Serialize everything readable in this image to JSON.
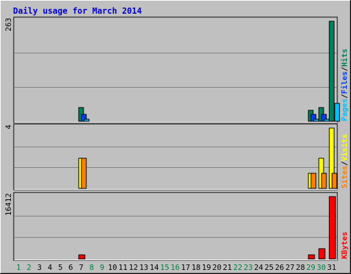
{
  "chart_data": {
    "type": "bar",
    "title": "Daily usage for March 2014",
    "colors": {
      "background": "#c0c0c0",
      "panel": "#c0c0c0",
      "title": "#0000cc",
      "hits": "#00805c",
      "files": "#0040ff",
      "pages": "#00c0ff",
      "visits": "#ffff00",
      "sites": "#ff8000",
      "kbytes": "#ff0000",
      "weekday": "#000000",
      "weekend": "#008040"
    },
    "x": [
      "1",
      "2",
      "3",
      "4",
      "5",
      "6",
      "7",
      "8",
      "9",
      "10",
      "11",
      "12",
      "13",
      "14",
      "15",
      "16",
      "17",
      "18",
      "19",
      "20",
      "21",
      "22",
      "23",
      "24",
      "25",
      "26",
      "27",
      "28",
      "29",
      "30",
      "31"
    ],
    "weekend_days": [
      "1",
      "2",
      "8",
      "9",
      "15",
      "16",
      "22",
      "23",
      "29",
      "30"
    ],
    "panels": [
      {
        "name": "hits-files-pages",
        "ymax_label": "263",
        "ymax": 263,
        "legend": [
          "Pages",
          "/",
          "Files",
          "/",
          "Hits"
        ],
        "legend_colors": [
          "pages",
          "black",
          "files",
          "black",
          "hits"
        ],
        "series": [
          {
            "name": "Hits",
            "values": [
              0,
              0,
              0,
              0,
              0,
              0,
              36,
              0,
              0,
              0,
              0,
              0,
              0,
              0,
              0,
              0,
              0,
              0,
              0,
              0,
              0,
              0,
              0,
              0,
              0,
              0,
              0,
              0,
              28,
              36,
              263
            ]
          },
          {
            "name": "Files",
            "values": [
              0,
              0,
              0,
              0,
              0,
              0,
              18,
              0,
              0,
              0,
              0,
              0,
              0,
              0,
              0,
              0,
              0,
              0,
              0,
              0,
              0,
              0,
              0,
              0,
              0,
              0,
              0,
              0,
              18,
              18,
              0
            ]
          },
          {
            "name": "Pages",
            "values": [
              0,
              0,
              0,
              0,
              0,
              0,
              5,
              0,
              0,
              0,
              0,
              0,
              0,
              0,
              0,
              0,
              0,
              0,
              0,
              0,
              0,
              0,
              0,
              0,
              0,
              0,
              0,
              0,
              5,
              5,
              47
            ]
          }
        ]
      },
      {
        "name": "sites-visits",
        "ymax_label": "4",
        "ymax": 4,
        "legend": [
          "Sites",
          "/",
          "Visits"
        ],
        "legend_colors": [
          "sites",
          "black",
          "visits"
        ],
        "series": [
          {
            "name": "Visits",
            "values": [
              0,
              0,
              0,
              0,
              0,
              0,
              2,
              0,
              0,
              0,
              0,
              0,
              0,
              0,
              0,
              0,
              0,
              0,
              0,
              0,
              0,
              0,
              0,
              0,
              0,
              0,
              0,
              0,
              1,
              2,
              4
            ]
          },
          {
            "name": "Sites",
            "values": [
              0,
              0,
              0,
              0,
              0,
              0,
              2,
              0,
              0,
              0,
              0,
              0,
              0,
              0,
              0,
              0,
              0,
              0,
              0,
              0,
              0,
              0,
              0,
              0,
              0,
              0,
              0,
              0,
              1,
              1,
              1
            ]
          }
        ]
      },
      {
        "name": "kbytes",
        "ymax_label": "16412",
        "ymax": 16412,
        "legend": [
          "KBytes"
        ],
        "legend_colors": [
          "kbytes"
        ],
        "series": [
          {
            "name": "KBytes",
            "values": [
              0,
              0,
              0,
              0,
              0,
              0,
              1050,
              0,
              0,
              0,
              0,
              0,
              0,
              0,
              0,
              0,
              0,
              0,
              0,
              0,
              0,
              0,
              0,
              0,
              0,
              0,
              0,
              0,
              1050,
              2700,
              16412
            ]
          }
        ]
      }
    ]
  }
}
